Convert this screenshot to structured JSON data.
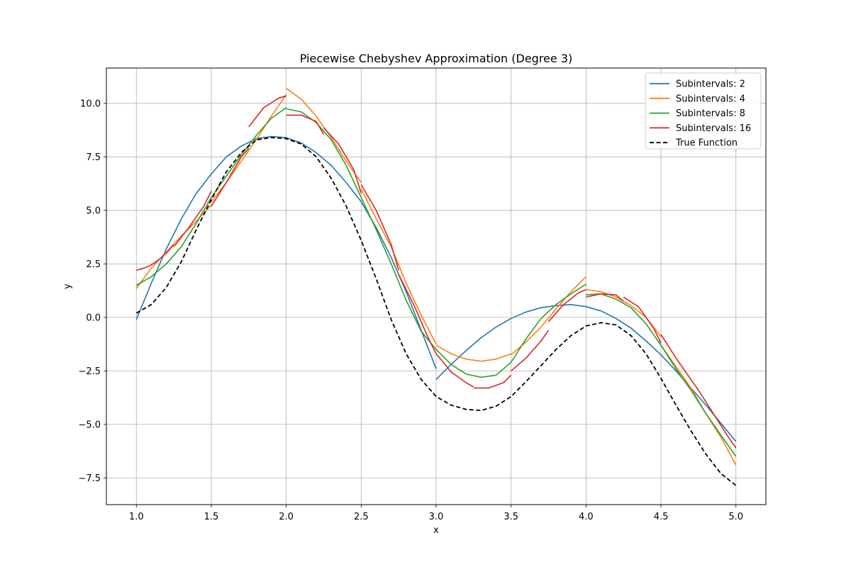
{
  "chart_data": {
    "type": "line",
    "title": "Piecewise Chebyshev Approximation (Degree 3)",
    "xlabel": "x",
    "ylabel": "y",
    "xlim": [
      0.8,
      5.2
    ],
    "ylim": [
      -8.75,
      11.65
    ],
    "xticks": [
      "1.0",
      "1.5",
      "2.0",
      "2.5",
      "3.0",
      "3.5",
      "4.0",
      "4.5",
      "5.0"
    ],
    "xtick_values": [
      1.0,
      1.5,
      2.0,
      2.5,
      3.0,
      3.5,
      4.0,
      4.5,
      5.0
    ],
    "yticks": [
      "−7.5",
      "−5.0",
      "−2.5",
      "0.0",
      "2.5",
      "5.0",
      "7.5",
      "10.0"
    ],
    "ytick_values": [
      -7.5,
      -5.0,
      -2.5,
      0.0,
      2.5,
      5.0,
      7.5,
      10.0
    ],
    "grid": true,
    "legend_position": "top-right",
    "series": [
      {
        "name": "Subintervals: 2",
        "color": "#1f77b4",
        "dash": false,
        "segments": [
          [
            [
              1.0,
              -0.1
            ],
            [
              1.1,
              1.6
            ],
            [
              1.2,
              3.2
            ],
            [
              1.3,
              4.6
            ],
            [
              1.4,
              5.8
            ],
            [
              1.5,
              6.7
            ],
            [
              1.6,
              7.5
            ],
            [
              1.7,
              8.0
            ],
            [
              1.8,
              8.35
            ],
            [
              1.9,
              8.45
            ],
            [
              2.0,
              8.4
            ],
            [
              2.1,
              8.15
            ],
            [
              2.2,
              7.7
            ],
            [
              2.3,
              7.1
            ],
            [
              2.4,
              6.3
            ],
            [
              2.5,
              5.4
            ],
            [
              2.6,
              4.2
            ],
            [
              2.7,
              2.8
            ],
            [
              2.8,
              1.2
            ],
            [
              2.9,
              -0.6
            ],
            [
              3.0,
              -2.4
            ]
          ],
          [
            [
              3.0,
              -2.9
            ],
            [
              3.1,
              -2.2
            ],
            [
              3.2,
              -1.55
            ],
            [
              3.3,
              -0.95
            ],
            [
              3.4,
              -0.45
            ],
            [
              3.5,
              -0.05
            ],
            [
              3.6,
              0.25
            ],
            [
              3.7,
              0.45
            ],
            [
              3.8,
              0.55
            ],
            [
              3.9,
              0.6
            ],
            [
              4.0,
              0.5
            ],
            [
              4.1,
              0.3
            ],
            [
              4.2,
              -0.05
            ],
            [
              4.3,
              -0.5
            ],
            [
              4.4,
              -1.1
            ],
            [
              4.5,
              -1.75
            ],
            [
              4.6,
              -2.5
            ],
            [
              4.7,
              -3.3
            ],
            [
              4.8,
              -4.1
            ],
            [
              4.9,
              -4.95
            ],
            [
              5.0,
              -5.8
            ]
          ]
        ]
      },
      {
        "name": "Subintervals: 4",
        "color": "#ff7f0e",
        "dash": false,
        "segments": [
          [
            [
              1.0,
              1.35
            ],
            [
              1.1,
              2.3
            ],
            [
              1.2,
              3.05
            ],
            [
              1.3,
              3.8
            ],
            [
              1.4,
              4.5
            ],
            [
              1.5,
              5.25
            ]
          ],
          [
            [
              1.5,
              5.4
            ],
            [
              1.6,
              6.3
            ],
            [
              1.7,
              7.3
            ],
            [
              1.8,
              8.3
            ],
            [
              1.9,
              9.4
            ],
            [
              2.0,
              10.4
            ]
          ],
          [
            [
              2.0,
              10.7
            ],
            [
              2.1,
              10.2
            ],
            [
              2.2,
              9.4
            ],
            [
              2.3,
              8.4
            ],
            [
              2.4,
              7.3
            ],
            [
              2.5,
              6.3
            ]
          ],
          [
            [
              2.5,
              6.0
            ],
            [
              2.6,
              4.6
            ],
            [
              2.7,
              3.3
            ],
            [
              2.8,
              1.6
            ],
            [
              2.9,
              0.1
            ],
            [
              3.0,
              -1.25
            ]
          ],
          [
            [
              3.0,
              -1.3
            ],
            [
              3.1,
              -1.7
            ],
            [
              3.2,
              -1.95
            ],
            [
              3.3,
              -2.05
            ],
            [
              3.4,
              -1.95
            ],
            [
              3.5,
              -1.7
            ]
          ],
          [
            [
              3.5,
              -1.75
            ],
            [
              3.6,
              -1.15
            ],
            [
              3.7,
              -0.45
            ],
            [
              3.8,
              0.4
            ],
            [
              3.9,
              1.2
            ],
            [
              4.0,
              1.9
            ]
          ],
          [
            [
              4.0,
              1.3
            ],
            [
              4.1,
              1.2
            ],
            [
              4.2,
              0.95
            ],
            [
              4.3,
              0.55
            ],
            [
              4.4,
              0.0
            ],
            [
              4.5,
              -0.9
            ]
          ],
          [
            [
              4.5,
              -1.3
            ],
            [
              4.6,
              -2.3
            ],
            [
              4.7,
              -3.3
            ],
            [
              4.8,
              -4.5
            ],
            [
              4.9,
              -5.6
            ],
            [
              5.0,
              -6.9
            ]
          ]
        ]
      },
      {
        "name": "Subintervals: 8",
        "color": "#2ca02c",
        "dash": false,
        "segments": [
          [
            [
              1.0,
              1.5
            ],
            [
              1.1,
              1.9
            ],
            [
              1.2,
              2.5
            ],
            [
              1.3,
              3.3
            ],
            [
              1.4,
              4.4
            ],
            [
              1.5,
              5.6
            ]
          ],
          [
            [
              1.5,
              5.6
            ],
            [
              1.6,
              6.6
            ],
            [
              1.7,
              7.6
            ],
            [
              1.8,
              8.5
            ],
            [
              1.9,
              9.3
            ],
            [
              2.0,
              9.8
            ]
          ],
          [
            [
              2.0,
              9.75
            ],
            [
              2.1,
              9.6
            ],
            [
              2.2,
              9.1
            ],
            [
              2.3,
              8.3
            ],
            [
              2.4,
              7.1
            ],
            [
              2.5,
              5.6
            ]
          ],
          [
            [
              2.5,
              5.6
            ],
            [
              2.6,
              4.1
            ],
            [
              2.7,
              2.5
            ],
            [
              2.8,
              0.8
            ],
            [
              2.9,
              -0.65
            ],
            [
              3.0,
              -1.5
            ]
          ],
          [
            [
              3.0,
              -1.5
            ],
            [
              3.1,
              -2.2
            ],
            [
              3.2,
              -2.65
            ],
            [
              3.3,
              -2.8
            ],
            [
              3.4,
              -2.7
            ],
            [
              3.5,
              -2.1
            ]
          ],
          [
            [
              3.5,
              -2.1
            ],
            [
              3.6,
              -1.0
            ],
            [
              3.7,
              -0.05
            ],
            [
              3.8,
              0.6
            ],
            [
              3.9,
              1.1
            ],
            [
              4.0,
              1.55
            ]
          ],
          [
            [
              4.0,
              1.05
            ],
            [
              4.1,
              1.1
            ],
            [
              4.2,
              0.85
            ],
            [
              4.3,
              0.45
            ],
            [
              4.4,
              -0.3
            ],
            [
              4.5,
              -1.3
            ]
          ],
          [
            [
              4.5,
              -1.3
            ],
            [
              4.6,
              -2.4
            ],
            [
              4.7,
              -3.4
            ],
            [
              4.8,
              -4.5
            ],
            [
              4.9,
              -5.5
            ],
            [
              5.0,
              -6.5
            ]
          ]
        ]
      },
      {
        "name": "Subintervals: 16",
        "color": "#d62728",
        "dash": false,
        "segments": [
          [
            [
              1.0,
              2.2
            ],
            [
              1.05,
              2.3
            ],
            [
              1.1,
              2.45
            ],
            [
              1.15,
              2.7
            ],
            [
              1.2,
              3.0
            ],
            [
              1.25,
              3.4
            ]
          ],
          [
            [
              1.25,
              3.3
            ],
            [
              1.35,
              4.2
            ],
            [
              1.45,
              5.2
            ],
            [
              1.5,
              5.9
            ]
          ],
          [
            [
              1.5,
              5.2
            ],
            [
              1.6,
              6.3
            ],
            [
              1.7,
              7.5
            ],
            [
              1.75,
              7.9
            ]
          ],
          [
            [
              1.75,
              8.9
            ],
            [
              1.85,
              9.8
            ],
            [
              1.95,
              10.25
            ],
            [
              2.0,
              10.35
            ]
          ],
          [
            [
              2.0,
              9.45
            ],
            [
              2.1,
              9.45
            ],
            [
              2.2,
              9.15
            ],
            [
              2.25,
              8.55
            ]
          ],
          [
            [
              2.25,
              8.85
            ],
            [
              2.35,
              8.1
            ],
            [
              2.45,
              6.9
            ],
            [
              2.5,
              5.8
            ]
          ],
          [
            [
              2.5,
              6.2
            ],
            [
              2.6,
              5.0
            ],
            [
              2.7,
              3.4
            ],
            [
              2.75,
              2.2
            ]
          ],
          [
            [
              2.75,
              2.0
            ],
            [
              2.85,
              0.6
            ],
            [
              2.95,
              -1.0
            ],
            [
              3.0,
              -1.7
            ]
          ],
          [
            [
              3.0,
              -1.7
            ],
            [
              3.1,
              -2.55
            ],
            [
              3.2,
              -3.05
            ],
            [
              3.25,
              -3.25
            ]
          ],
          [
            [
              3.25,
              -3.3
            ],
            [
              3.35,
              -3.3
            ],
            [
              3.45,
              -3.05
            ],
            [
              3.5,
              -2.7
            ]
          ],
          [
            [
              3.5,
              -2.5
            ],
            [
              3.6,
              -1.9
            ],
            [
              3.7,
              -1.1
            ],
            [
              3.75,
              -0.6
            ]
          ],
          [
            [
              3.75,
              -0.2
            ],
            [
              3.85,
              0.6
            ],
            [
              3.95,
              1.15
            ],
            [
              4.0,
              1.3
            ]
          ],
          [
            [
              4.0,
              0.95
            ],
            [
              4.1,
              1.1
            ],
            [
              4.2,
              1.05
            ],
            [
              4.25,
              0.75
            ]
          ],
          [
            [
              4.25,
              0.95
            ],
            [
              4.35,
              0.5
            ],
            [
              4.45,
              -0.5
            ],
            [
              4.5,
              -1.2
            ]
          ],
          [
            [
              4.5,
              -0.8
            ],
            [
              4.6,
              -1.9
            ],
            [
              4.7,
              -2.9
            ],
            [
              4.75,
              -3.4
            ]
          ],
          [
            [
              4.75,
              -3.4
            ],
            [
              4.85,
              -4.5
            ],
            [
              4.95,
              -5.6
            ],
            [
              5.0,
              -6.1
            ]
          ]
        ]
      },
      {
        "name": "True Function",
        "color": "#000000",
        "dash": true,
        "segments": [
          [
            [
              1.0,
              0.2
            ],
            [
              1.1,
              0.6
            ],
            [
              1.2,
              1.4
            ],
            [
              1.3,
              2.6
            ],
            [
              1.4,
              4.1
            ],
            [
              1.5,
              5.5
            ],
            [
              1.6,
              6.8
            ],
            [
              1.7,
              7.7
            ],
            [
              1.8,
              8.3
            ],
            [
              1.9,
              8.4
            ],
            [
              2.0,
              8.35
            ],
            [
              2.1,
              8.1
            ],
            [
              2.2,
              7.5
            ],
            [
              2.3,
              6.5
            ],
            [
              2.4,
              5.2
            ],
            [
              2.5,
              3.6
            ],
            [
              2.6,
              1.8
            ],
            [
              2.7,
              -0.1
            ],
            [
              2.8,
              -1.7
            ],
            [
              2.9,
              -2.9
            ],
            [
              3.0,
              -3.7
            ],
            [
              3.1,
              -4.1
            ],
            [
              3.2,
              -4.3
            ],
            [
              3.3,
              -4.35
            ],
            [
              3.4,
              -4.15
            ],
            [
              3.5,
              -3.7
            ],
            [
              3.6,
              -3.0
            ],
            [
              3.7,
              -2.25
            ],
            [
              3.8,
              -1.5
            ],
            [
              3.9,
              -0.85
            ],
            [
              4.0,
              -0.4
            ],
            [
              4.1,
              -0.25
            ],
            [
              4.2,
              -0.35
            ],
            [
              4.3,
              -0.85
            ],
            [
              4.4,
              -1.7
            ],
            [
              4.5,
              -2.85
            ],
            [
              4.6,
              -4.1
            ],
            [
              4.7,
              -5.3
            ],
            [
              4.8,
              -6.4
            ],
            [
              4.9,
              -7.3
            ],
            [
              5.0,
              -7.85
            ]
          ]
        ]
      }
    ]
  }
}
